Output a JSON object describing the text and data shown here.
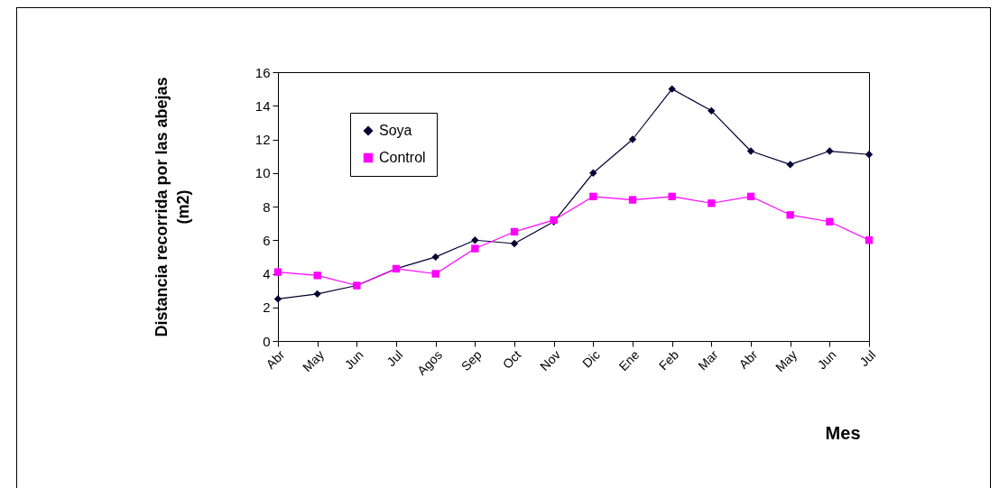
{
  "chart_data": {
    "type": "line",
    "ylabel": "Distancia recorrida por las abejas (m2)",
    "xlabel": "Mes",
    "categories": [
      "Abr",
      "May",
      "Jun",
      "Jul",
      "Agos",
      "Sep",
      "Oct",
      "Nov",
      "Dic",
      "Ene",
      "Feb",
      "Mar",
      "Abr",
      "May",
      "Jun",
      "Jul"
    ],
    "series": [
      {
        "name": "Soya",
        "color": "#000033",
        "marker": "diamond",
        "values": [
          2.5,
          2.8,
          3.3,
          4.3,
          5.0,
          6.0,
          5.8,
          7.1,
          10.0,
          12.0,
          15.0,
          13.7,
          11.3,
          10.5,
          11.3,
          11.1
        ]
      },
      {
        "name": "Control",
        "color": "#ff00ff",
        "marker": "square",
        "values": [
          4.1,
          3.9,
          3.3,
          4.3,
          4.0,
          5.5,
          6.5,
          7.2,
          8.6,
          8.4,
          8.6,
          8.2,
          8.6,
          7.5,
          7.1,
          6.0
        ]
      }
    ],
    "ylim": [
      0,
      16
    ],
    "yticks": [
      0,
      2,
      4,
      6,
      8,
      10,
      12,
      14,
      16
    ],
    "legend": "top left",
    "grid": false
  }
}
